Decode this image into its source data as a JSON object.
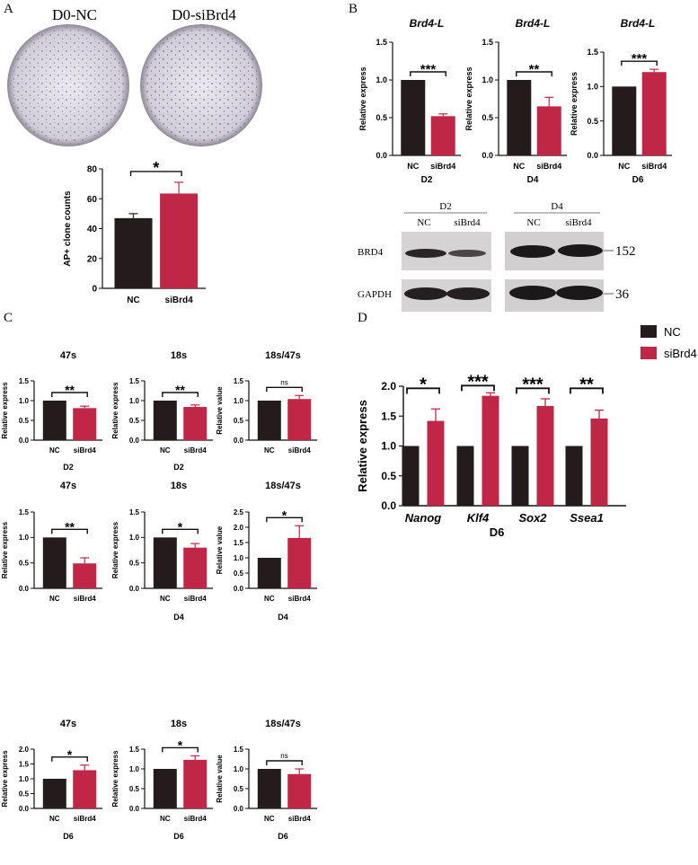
{
  "colors": {
    "nc": "#231b1c",
    "sibrd4": "#c02747",
    "axis": "#111111"
  },
  "panel_letters": {
    "a": "A",
    "b": "B",
    "c": "C",
    "d": "D"
  },
  "panel_a": {
    "plate_labels": [
      "D0-NC",
      "D0-siBrd4"
    ],
    "images": [
      "ap-stained-well-plate",
      "ap-stained-well-plate"
    ]
  },
  "western_blot": {
    "groups": [
      "D2",
      "D4"
    ],
    "lanes": [
      "NC",
      "siBrd4",
      "NC",
      "siBrd4"
    ],
    "rows": [
      {
        "protein": "BRD4",
        "kda": "152"
      },
      {
        "protein": "GAPDH",
        "kda": "36"
      }
    ]
  },
  "chart_data": [
    {
      "id": "A",
      "type": "bar",
      "categories": [
        "NC",
        "siBrd4"
      ],
      "values": [
        47,
        63.5
      ],
      "errors": [
        3,
        7.5
      ],
      "ylabel": "AP+ clone counts",
      "ylim": [
        0,
        80
      ],
      "yticks": [
        0,
        20,
        40,
        60,
        80
      ],
      "sig": "*"
    },
    {
      "id": "B1",
      "type": "bar",
      "title": "Brd4-L",
      "xlabel": "D2",
      "categories": [
        "NC",
        "siBrd4"
      ],
      "values": [
        1.0,
        0.52
      ],
      "errors": [
        0,
        0.03
      ],
      "ylabel": "Relative express",
      "ylim": [
        0,
        1.5
      ],
      "yticks": [
        0.0,
        0.5,
        1.0,
        1.5
      ],
      "sig": "***"
    },
    {
      "id": "B2",
      "type": "bar",
      "title": "Brd4-L",
      "xlabel": "D4",
      "categories": [
        "NC",
        "siBrd4"
      ],
      "values": [
        1.0,
        0.65
      ],
      "errors": [
        0,
        0.12
      ],
      "ylabel": "Relative express",
      "ylim": [
        0,
        1.5
      ],
      "yticks": [
        0.0,
        0.5,
        1.0,
        1.5
      ],
      "sig": "**"
    },
    {
      "id": "B3",
      "type": "bar",
      "title": "Brd4-L",
      "xlabel": "D6",
      "categories": [
        "NC",
        "siBrd4"
      ],
      "values": [
        1.0,
        1.21
      ],
      "errors": [
        0,
        0.04
      ],
      "ylabel": "Relative express",
      "ylim": [
        0,
        1.5
      ],
      "yticks": [
        0.0,
        0.5,
        1.0,
        1.5
      ],
      "sig": "***"
    },
    {
      "id": "C1",
      "type": "bar",
      "title": "47s",
      "xlabel": "D2",
      "categories": [
        "NC",
        "siBrd4"
      ],
      "values": [
        1.0,
        0.81
      ],
      "errors": [
        0,
        0.05
      ],
      "ylabel": "Relative express",
      "ylim": [
        0,
        1.5
      ],
      "yticks": [
        0.0,
        0.5,
        1.0,
        1.5
      ],
      "sig": "**"
    },
    {
      "id": "C2",
      "type": "bar",
      "title": "18s",
      "xlabel": "D2",
      "categories": [
        "NC",
        "siBrd4"
      ],
      "values": [
        1.0,
        0.84
      ],
      "errors": [
        0,
        0.05
      ],
      "ylabel": "Relative express",
      "ylim": [
        0,
        1.5
      ],
      "yticks": [
        0.0,
        0.5,
        1.0,
        1.5
      ],
      "sig": "**"
    },
    {
      "id": "C3",
      "type": "bar",
      "title": "18s/47s",
      "xlabel": "",
      "categories": [
        "NC",
        "siBrd4"
      ],
      "values": [
        1.0,
        1.04
      ],
      "errors": [
        0,
        0.09
      ],
      "ylabel": "Relative value",
      "ylim": [
        0,
        1.5
      ],
      "yticks": [
        0.0,
        0.5,
        1.0,
        1.5
      ],
      "sig": "ns"
    },
    {
      "id": "C4",
      "type": "bar",
      "title": "47s",
      "xlabel": "",
      "categories": [
        "NC",
        "siBrd4"
      ],
      "values": [
        1.0,
        0.49
      ],
      "errors": [
        0,
        0.11
      ],
      "ylabel": "Relative express",
      "ylim": [
        0,
        1.5
      ],
      "yticks": [
        0.0,
        0.5,
        1.0,
        1.5
      ],
      "sig": "**"
    },
    {
      "id": "C5",
      "type": "bar",
      "title": "18s",
      "xlabel": "D4",
      "categories": [
        "NC",
        "siBrd4"
      ],
      "values": [
        1.0,
        0.8
      ],
      "errors": [
        0,
        0.08
      ],
      "ylabel": "Relative express",
      "ylim": [
        0,
        1.5
      ],
      "yticks": [
        0.0,
        0.5,
        1.0,
        1.5
      ],
      "sig": "*"
    },
    {
      "id": "C6",
      "type": "bar",
      "title": "18s/47s",
      "xlabel": "D4",
      "categories": [
        "NC",
        "siBrd4"
      ],
      "values": [
        1.0,
        1.65
      ],
      "errors": [
        0,
        0.4
      ],
      "ylabel": "Relative value",
      "ylim": [
        0,
        2.5
      ],
      "yticks": [
        0.0,
        0.5,
        1.0,
        1.5,
        2.0,
        2.5
      ],
      "sig": "*"
    },
    {
      "id": "C7",
      "type": "bar",
      "title": "47s",
      "xlabel": "D6",
      "categories": [
        "NC",
        "siBrd4"
      ],
      "values": [
        1.0,
        1.29
      ],
      "errors": [
        0,
        0.17
      ],
      "ylabel": "Relative express",
      "ylim": [
        0,
        2.0
      ],
      "yticks": [
        0.0,
        0.5,
        1.0,
        1.5,
        2.0
      ],
      "sig": "*"
    },
    {
      "id": "C8",
      "type": "bar",
      "title": "18s",
      "xlabel": "D6",
      "categories": [
        "NC",
        "siBrd4"
      ],
      "values": [
        1.0,
        1.23
      ],
      "errors": [
        0,
        0.1
      ],
      "ylabel": "Relative express",
      "ylim": [
        0,
        1.5
      ],
      "yticks": [
        0.0,
        0.5,
        1.0,
        1.5
      ],
      "sig": "*"
    },
    {
      "id": "C9",
      "type": "bar",
      "title": "18s/47s",
      "xlabel": "D6",
      "categories": [
        "NC",
        "siBrd4"
      ],
      "values": [
        1.0,
        0.87
      ],
      "errors": [
        0,
        0.13
      ],
      "ylabel": "Relative value",
      "ylim": [
        0,
        1.5
      ],
      "yticks": [
        0.0,
        0.5,
        1.0,
        1.5
      ],
      "sig": "ns"
    },
    {
      "id": "D",
      "type": "bar",
      "xlabel": "D6",
      "ylabel": "Relative express",
      "categories": [
        "Nanog",
        "Klf4",
        "Sox2",
        "Ssea1"
      ],
      "ylim": [
        0,
        2.0
      ],
      "yticks": [
        0.0,
        0.5,
        1.0,
        1.5,
        2.0
      ],
      "series": [
        {
          "name": "NC",
          "values": [
            1.0,
            1.0,
            1.0,
            1.0
          ],
          "errors": [
            0,
            0,
            0,
            0
          ]
        },
        {
          "name": "siBrd4",
          "values": [
            1.42,
            1.84,
            1.67,
            1.46
          ],
          "errors": [
            0.2,
            0.05,
            0.12,
            0.14
          ]
        }
      ],
      "sig": [
        "*",
        "***",
        "***",
        "**"
      ]
    }
  ]
}
